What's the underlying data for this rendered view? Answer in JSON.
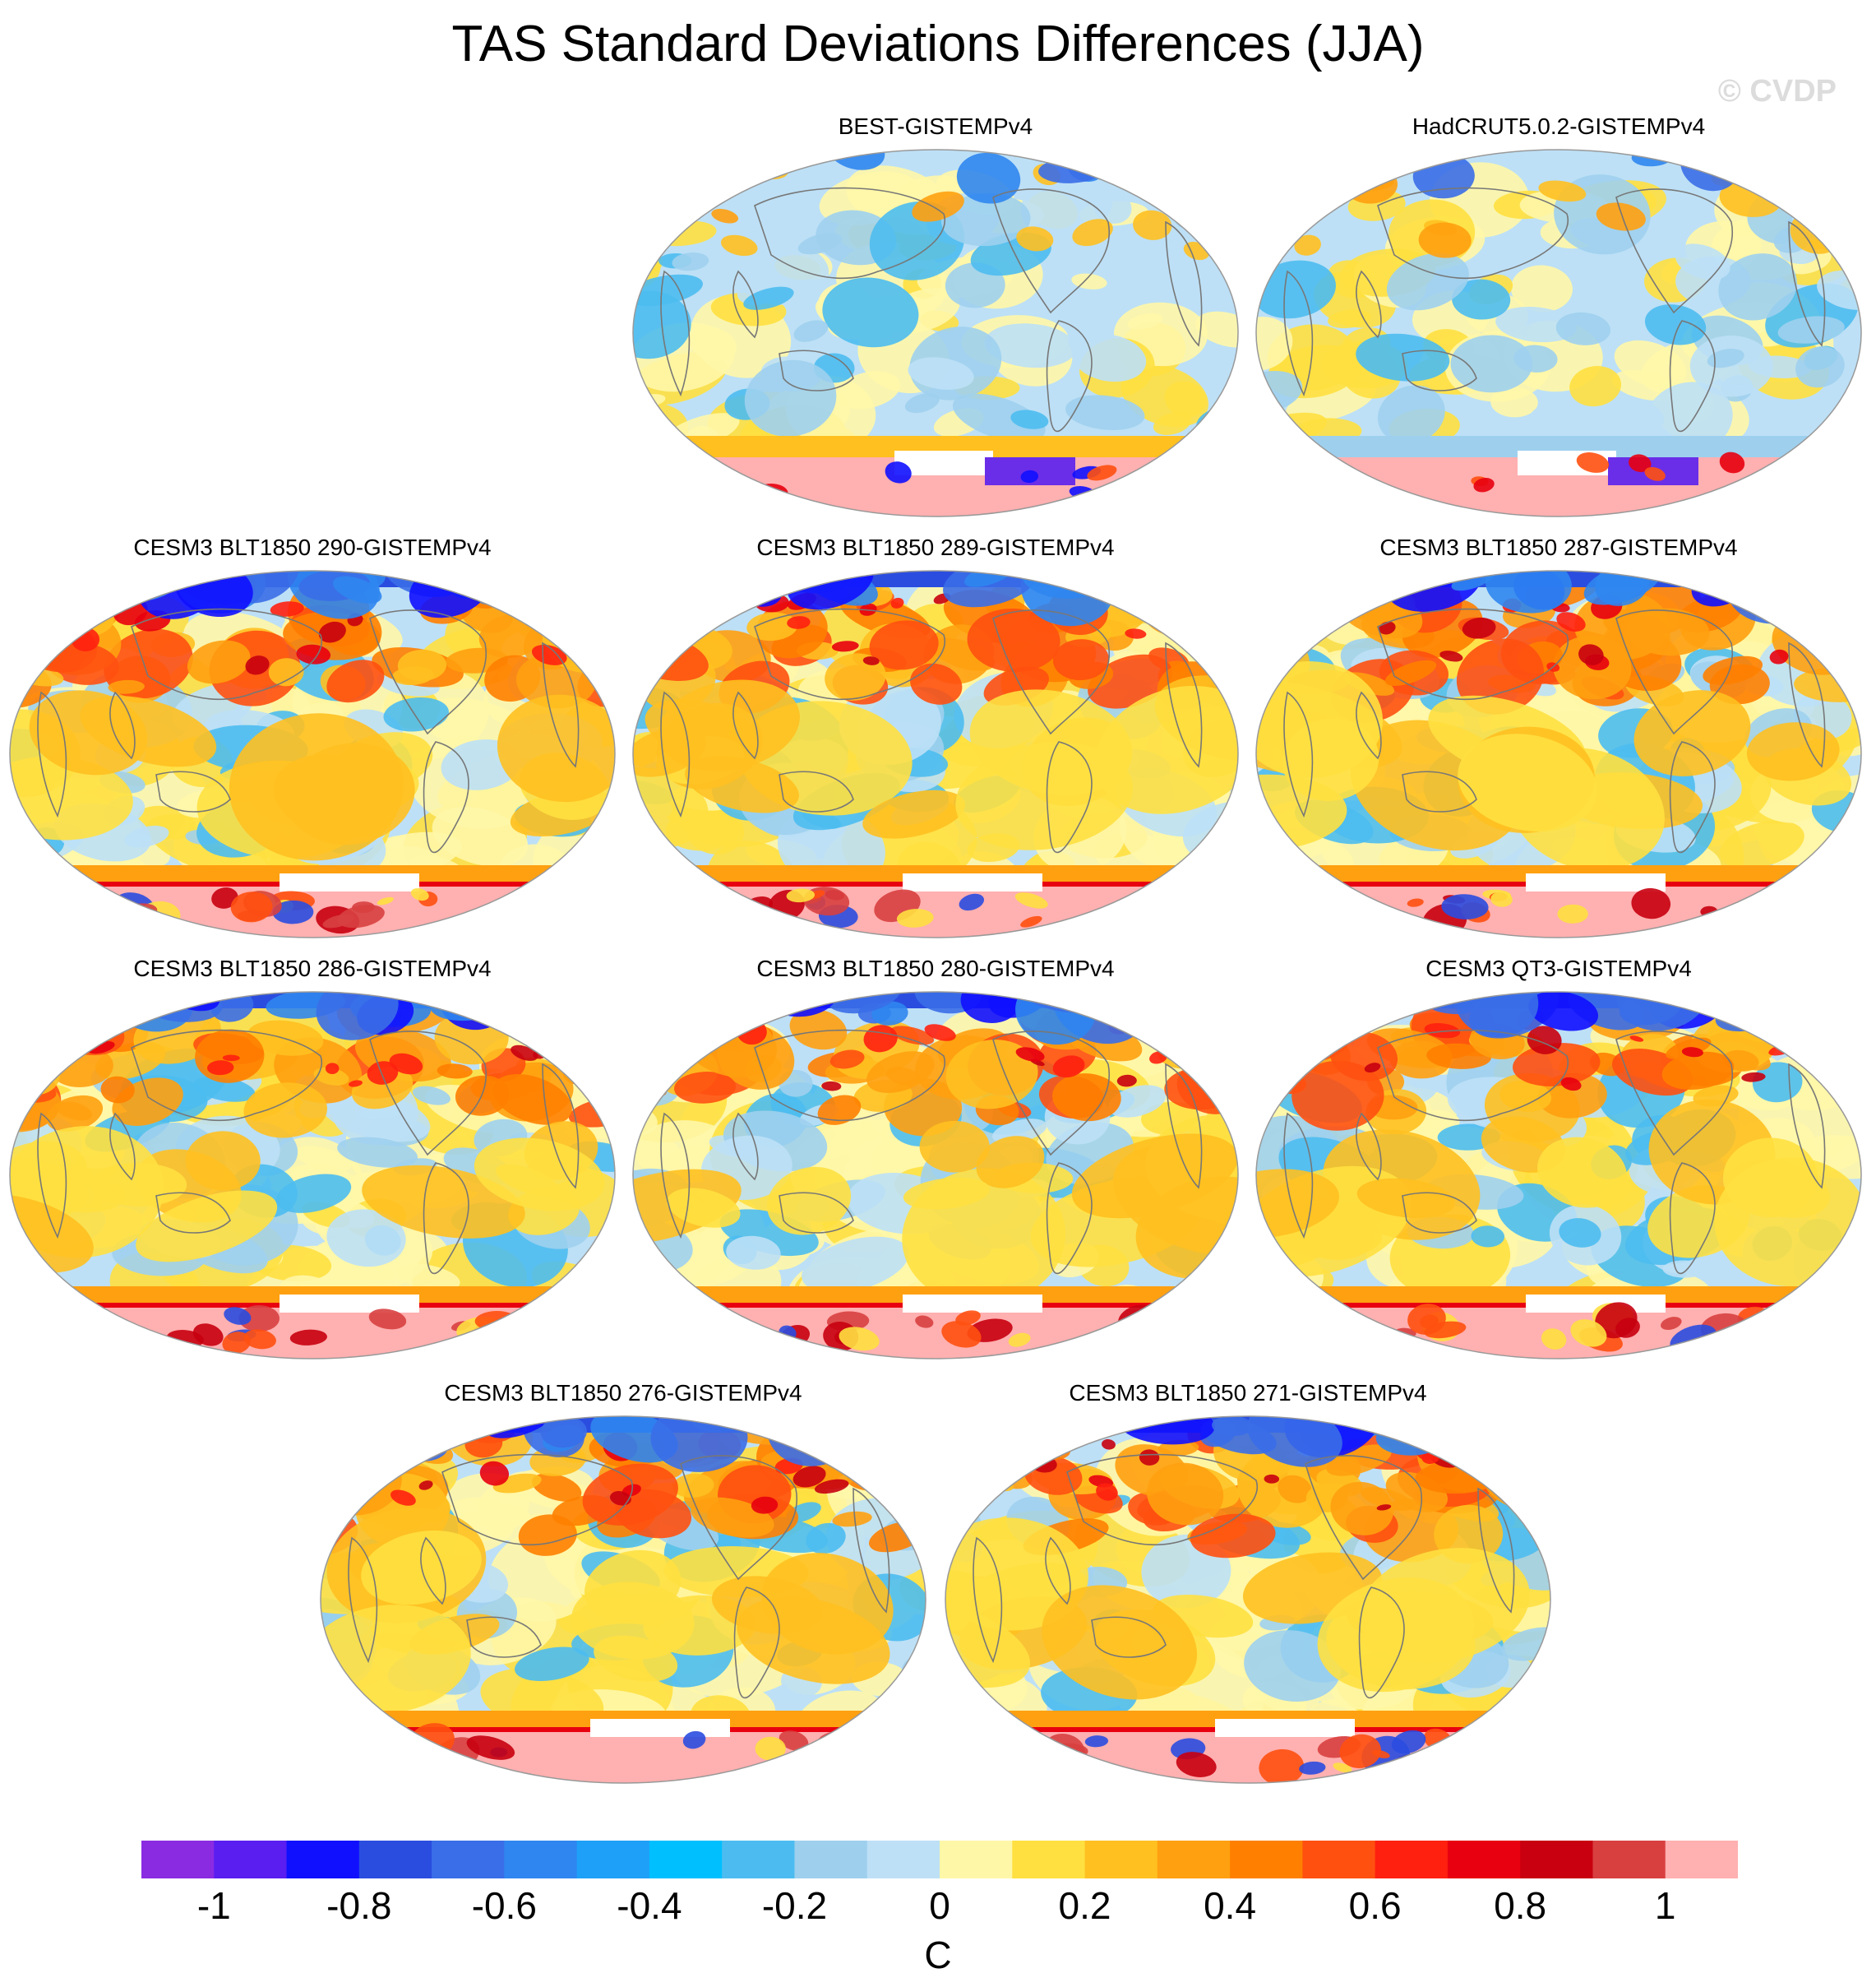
{
  "title": "TAS Standard Deviations Differences (JJA)",
  "watermark": "© CVDP",
  "panels": [
    {
      "title": "BEST-GISTEMPv4",
      "style": "obs1"
    },
    {
      "title": "HadCRUT5.0.2-GISTEMPv4",
      "style": "obs2"
    },
    {
      "title": "CESM3 BLT1850 290-GISTEMPv4",
      "style": "model"
    },
    {
      "title": "CESM3 BLT1850 289-GISTEMPv4",
      "style": "model"
    },
    {
      "title": "CESM3 BLT1850 287-GISTEMPv4",
      "style": "model"
    },
    {
      "title": "CESM3 BLT1850 286-GISTEMPv4",
      "style": "model"
    },
    {
      "title": "CESM3 BLT1850 280-GISTEMPv4",
      "style": "model"
    },
    {
      "title": "CESM3 QT3-GISTEMPv4",
      "style": "model"
    },
    {
      "title": "CESM3 BLT1850 276-GISTEMPv4",
      "style": "model"
    },
    {
      "title": "CESM3 BLT1850 271-GISTEMPv4",
      "style": "model"
    }
  ],
  "colorbar": {
    "colors": [
      "#8a2be2",
      "#5a1ef0",
      "#1010ff",
      "#2a4de0",
      "#3a6ee8",
      "#2f86f0",
      "#1ea0f8",
      "#00bfff",
      "#4cbcf0",
      "#9ed0ee",
      "#bde0f6",
      "#fff7a8",
      "#ffe040",
      "#ffc020",
      "#ffa010",
      "#ff8000",
      "#ff5010",
      "#ff2010",
      "#e80010",
      "#c80010",
      "#d84040",
      "#ffb0b0"
    ],
    "labels": [
      "-1",
      "-0.8",
      "-0.6",
      "-0.4",
      "-0.2",
      "0",
      "0.2",
      "0.4",
      "0.6",
      "0.8",
      "1"
    ],
    "units": "C"
  },
  "legend_colors": {
    "land_outline": "#777777",
    "missing": "#ffffff"
  }
}
